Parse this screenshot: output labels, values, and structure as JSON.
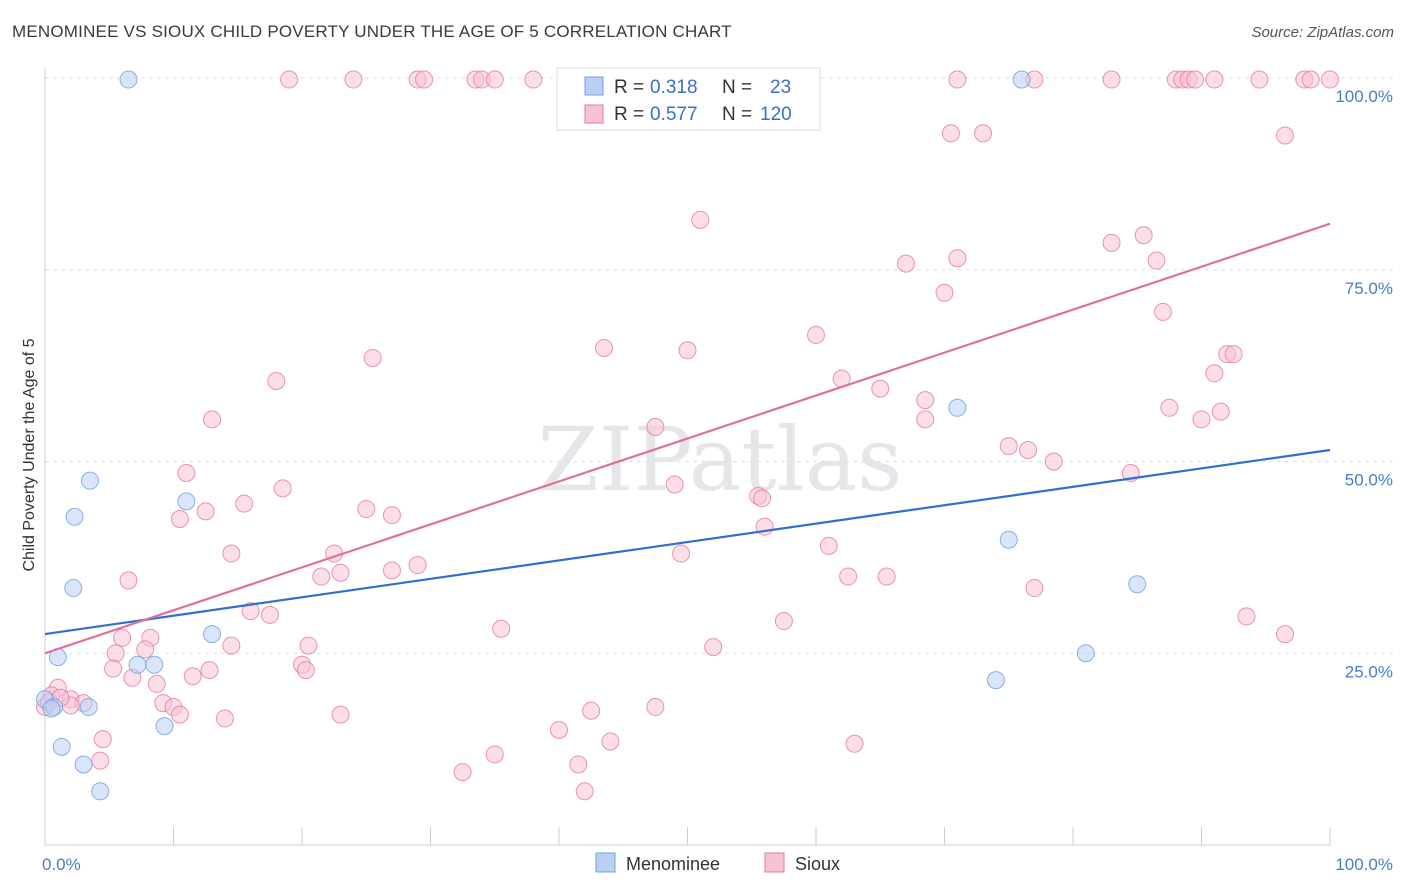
{
  "title": "MENOMINEE VS SIOUX CHILD POVERTY UNDER THE AGE OF 5 CORRELATION CHART",
  "source": "Source: ZipAtlas.com",
  "watermark": "ZIPatlas",
  "chart_data": {
    "type": "scatter",
    "xlabel": "",
    "ylabel": "Child Poverty Under the Age of 5",
    "xlim": [
      0,
      100
    ],
    "ylim": [
      0,
      100
    ],
    "x_tick_labels": [
      "0.0%",
      "100.0%"
    ],
    "y_tick_labels": [
      "25.0%",
      "50.0%",
      "75.0%",
      "100.0%"
    ],
    "y_ticks": [
      25,
      50,
      75,
      100
    ],
    "grid": true,
    "legend": {
      "placement": "top-center",
      "rows": [
        {
          "r_label": "R =",
          "r_value": "0.318",
          "n_label": "N =",
          "n_value": "23"
        },
        {
          "r_label": "R =",
          "r_value": "0.577",
          "n_label": "N =",
          "n_value": "120"
        }
      ]
    },
    "series": [
      {
        "name": "Menominee",
        "color": "#6f9fe0",
        "fill": "#b9d0f2",
        "trend": [
          [
            0,
            27.5
          ],
          [
            100,
            51.5
          ]
        ],
        "points": [
          [
            6.5,
            99.8
          ],
          [
            76.0,
            99.8
          ],
          [
            3.5,
            47.5
          ],
          [
            2.3,
            42.8
          ],
          [
            11.0,
            44.8
          ],
          [
            2.2,
            33.5
          ],
          [
            13.0,
            27.5
          ],
          [
            1.0,
            24.5
          ],
          [
            7.2,
            23.5
          ],
          [
            8.5,
            23.5
          ],
          [
            0.0,
            19.0
          ],
          [
            0.7,
            18.0
          ],
          [
            3.4,
            18.0
          ],
          [
            9.3,
            15.5
          ],
          [
            1.3,
            12.8
          ],
          [
            3.0,
            10.5
          ],
          [
            4.3,
            7.0
          ],
          [
            71.0,
            57.0
          ],
          [
            75.0,
            39.8
          ],
          [
            85.0,
            34.0
          ],
          [
            81.0,
            25.0
          ],
          [
            74.0,
            21.5
          ],
          [
            0.5,
            17.8
          ]
        ]
      },
      {
        "name": "Sioux",
        "color": "#e37aa0",
        "fill": "#f7c3d4",
        "trend": [
          [
            0,
            25.0
          ],
          [
            100,
            81.0
          ]
        ],
        "points": [
          [
            19.0,
            99.8
          ],
          [
            24.0,
            99.8
          ],
          [
            29.0,
            99.8
          ],
          [
            29.5,
            99.8
          ],
          [
            33.5,
            99.8
          ],
          [
            34.0,
            99.8
          ],
          [
            35.0,
            99.8
          ],
          [
            38.0,
            99.8
          ],
          [
            48.0,
            99.8
          ],
          [
            71.0,
            99.8
          ],
          [
            77.0,
            99.8
          ],
          [
            83.0,
            99.8
          ],
          [
            88.0,
            99.8
          ],
          [
            88.5,
            99.8
          ],
          [
            89.0,
            99.8
          ],
          [
            89.5,
            99.8
          ],
          [
            91.0,
            99.8
          ],
          [
            94.5,
            99.8
          ],
          [
            98.0,
            99.8
          ],
          [
            98.5,
            99.8
          ],
          [
            100.0,
            99.8
          ],
          [
            70.5,
            92.8
          ],
          [
            73.0,
            92.8
          ],
          [
            96.5,
            92.5
          ],
          [
            51.0,
            81.5
          ],
          [
            83.0,
            78.5
          ],
          [
            85.5,
            79.5
          ],
          [
            67.0,
            75.8
          ],
          [
            71.0,
            76.5
          ],
          [
            86.5,
            76.2
          ],
          [
            70.0,
            72.0
          ],
          [
            87.0,
            69.5
          ],
          [
            60.0,
            66.5
          ],
          [
            43.5,
            64.8
          ],
          [
            50.0,
            64.5
          ],
          [
            92.0,
            64.0
          ],
          [
            92.5,
            64.0
          ],
          [
            25.5,
            63.5
          ],
          [
            18.0,
            60.5
          ],
          [
            62.0,
            60.8
          ],
          [
            65.0,
            59.5
          ],
          [
            91.0,
            61.5
          ],
          [
            68.5,
            58.0
          ],
          [
            87.5,
            57.0
          ],
          [
            90.0,
            55.5
          ],
          [
            91.5,
            56.5
          ],
          [
            68.5,
            55.5
          ],
          [
            13.0,
            55.5
          ],
          [
            47.5,
            54.5
          ],
          [
            75.0,
            52.0
          ],
          [
            76.5,
            51.5
          ],
          [
            78.5,
            50.0
          ],
          [
            84.5,
            48.5
          ],
          [
            11.0,
            48.5
          ],
          [
            18.5,
            46.5
          ],
          [
            49.0,
            47.0
          ],
          [
            55.5,
            45.5
          ],
          [
            55.8,
            45.2
          ],
          [
            15.5,
            44.5
          ],
          [
            25.0,
            43.8
          ],
          [
            12.5,
            43.5
          ],
          [
            27.0,
            43.0
          ],
          [
            10.5,
            42.5
          ],
          [
            56.0,
            41.5
          ],
          [
            61.0,
            39.0
          ],
          [
            14.5,
            38.0
          ],
          [
            22.5,
            38.0
          ],
          [
            49.5,
            38.0
          ],
          [
            29.0,
            36.5
          ],
          [
            23.0,
            35.5
          ],
          [
            27.0,
            35.8
          ],
          [
            21.5,
            35.0
          ],
          [
            62.5,
            35.0
          ],
          [
            65.5,
            35.0
          ],
          [
            6.5,
            34.5
          ],
          [
            77.0,
            33.5
          ],
          [
            16.0,
            30.5
          ],
          [
            17.5,
            30.0
          ],
          [
            93.5,
            29.8
          ],
          [
            57.5,
            29.2
          ],
          [
            35.5,
            28.2
          ],
          [
            96.5,
            27.5
          ],
          [
            6.0,
            27.0
          ],
          [
            8.2,
            27.0
          ],
          [
            14.5,
            26.0
          ],
          [
            20.5,
            26.0
          ],
          [
            52.0,
            25.8
          ],
          [
            7.8,
            25.5
          ],
          [
            5.5,
            25.0
          ],
          [
            20.0,
            23.5
          ],
          [
            5.3,
            23.0
          ],
          [
            12.8,
            22.8
          ],
          [
            20.3,
            22.8
          ],
          [
            11.5,
            22.0
          ],
          [
            6.8,
            21.8
          ],
          [
            1.0,
            20.5
          ],
          [
            8.7,
            21.0
          ],
          [
            2.0,
            19.0
          ],
          [
            0.5,
            19.5
          ],
          [
            3.0,
            18.5
          ],
          [
            2.0,
            18.2
          ],
          [
            0.0,
            18.0
          ],
          [
            9.2,
            18.5
          ],
          [
            10.0,
            18.0
          ],
          [
            47.5,
            18.0
          ],
          [
            42.5,
            17.5
          ],
          [
            10.5,
            17.0
          ],
          [
            23.0,
            17.0
          ],
          [
            14.0,
            16.5
          ],
          [
            40.0,
            15.0
          ],
          [
            4.5,
            13.8
          ],
          [
            44.0,
            13.5
          ],
          [
            63.0,
            13.2
          ],
          [
            35.0,
            11.8
          ],
          [
            4.3,
            11.0
          ],
          [
            41.5,
            10.5
          ],
          [
            32.5,
            9.5
          ],
          [
            42.0,
            7.0
          ],
          [
            0.3,
            18.6
          ],
          [
            1.2,
            19.2
          ]
        ]
      }
    ]
  }
}
